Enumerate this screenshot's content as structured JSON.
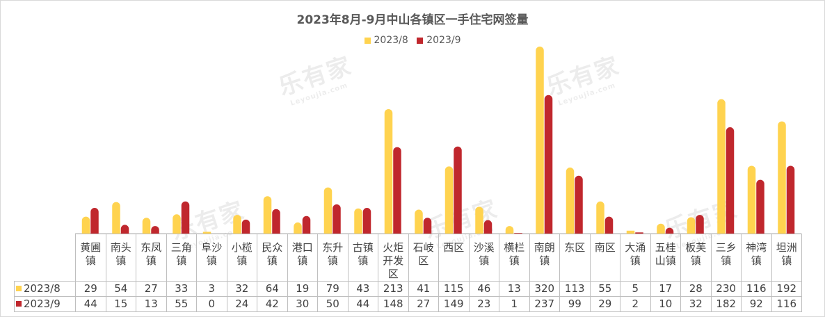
{
  "chart_data": {
    "type": "bar",
    "title": "2023年8月-9月中山各镇区一手住宅网签量",
    "categories": [
      "黄圃镇",
      "南头镇",
      "东凤镇",
      "三角镇",
      "阜沙镇",
      "小榄镇",
      "民众镇",
      "港口镇",
      "东升镇",
      "古镇镇",
      "火炬开发区",
      "石岐区",
      "西区",
      "沙溪镇",
      "横栏镇",
      "南朗镇",
      "东区",
      "南区",
      "大涌镇",
      "五桂山镇",
      "板芙镇",
      "三乡镇",
      "神湾镇",
      "坦洲镇"
    ],
    "series": [
      {
        "name": "2023/8",
        "color": "#FFD34F",
        "values": [
          29,
          54,
          27,
          33,
          3,
          32,
          64,
          19,
          79,
          43,
          213,
          41,
          115,
          46,
          13,
          320,
          113,
          55,
          5,
          17,
          28,
          230,
          116,
          192
        ]
      },
      {
        "name": "2023/9",
        "color": "#C0272D",
        "values": [
          44,
          15,
          13,
          55,
          0,
          24,
          42,
          30,
          50,
          44,
          148,
          27,
          149,
          23,
          1,
          237,
          99,
          29,
          2,
          10,
          32,
          182,
          92,
          116
        ]
      }
    ],
    "ylim": [
      0,
      320
    ],
    "legend_position": "top",
    "grid": false,
    "data_table": true
  },
  "watermark": {
    "text": "乐有家",
    "subtext": "Leyoujia.com"
  }
}
